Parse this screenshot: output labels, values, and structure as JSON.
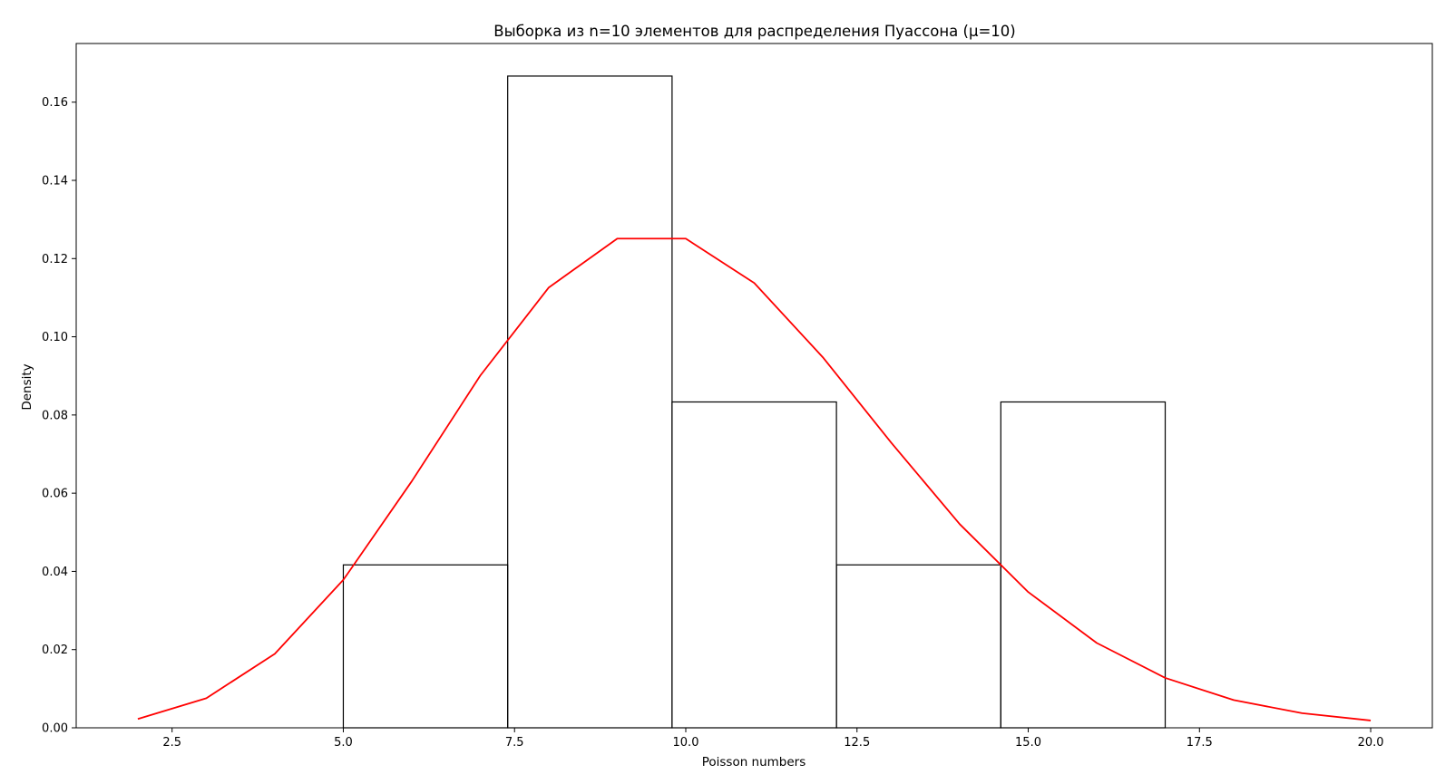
{
  "chart_data": {
    "type": "bar",
    "title": "Выборка из n=10 элементов для распределения Пуассона (μ=10)",
    "xlabel": "Poisson numbers",
    "ylabel": "Density",
    "xlim": [
      1.1,
      20.9
    ],
    "ylim": [
      0,
      0.175
    ],
    "xticks": [
      2.5,
      5.0,
      7.5,
      10.0,
      12.5,
      15.0,
      17.5,
      20.0
    ],
    "xtick_labels": [
      "2.5",
      "5.0",
      "7.5",
      "10.0",
      "12.5",
      "15.0",
      "17.5",
      "20.0"
    ],
    "yticks": [
      0.0,
      0.02,
      0.04,
      0.06,
      0.08,
      0.1,
      0.12,
      0.14,
      0.16
    ],
    "ytick_labels": [
      "0.00",
      "0.02",
      "0.04",
      "0.06",
      "0.08",
      "0.10",
      "0.12",
      "0.14",
      "0.16"
    ],
    "grid": false,
    "histogram": {
      "edge_color": "#000000",
      "fill": "none",
      "bins": [
        {
          "x0": 5.0,
          "x1": 7.4,
          "density": 0.04167
        },
        {
          "x0": 7.4,
          "x1": 9.8,
          "density": 0.16667
        },
        {
          "x0": 9.8,
          "x1": 12.2,
          "density": 0.08333
        },
        {
          "x0": 12.2,
          "x1": 14.6,
          "density": 0.04167
        },
        {
          "x0": 14.6,
          "x1": 17.0,
          "density": 0.08333
        }
      ]
    },
    "series": [
      {
        "type": "line",
        "color": "#ff0000",
        "x": [
          2,
          3,
          4,
          5,
          6,
          7,
          8,
          9,
          10,
          11,
          12,
          13,
          14,
          15,
          16,
          17,
          18,
          19,
          20
        ],
        "y": [
          0.00227,
          0.00757,
          0.01892,
          0.03783,
          0.06306,
          0.09008,
          0.1126,
          0.12511,
          0.12511,
          0.11374,
          0.09478,
          0.07291,
          0.05208,
          0.03472,
          0.0217,
          0.01276,
          0.00709,
          0.00373,
          0.00187
        ]
      }
    ]
  }
}
